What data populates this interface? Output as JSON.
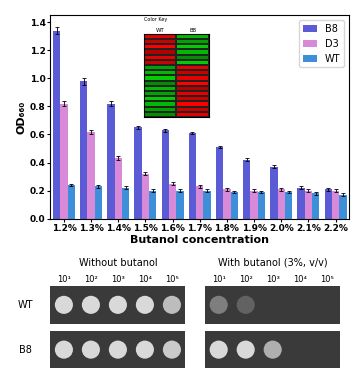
{
  "chart_data": [
    {
      "type": "bar",
      "x_label": "Butanol concentration",
      "y_label": "OD₆₆₀",
      "categories": [
        "1.2%",
        "1.3%",
        "1.4%",
        "1.5%",
        "1.6%",
        "1.7%",
        "1.8%",
        "1.9%",
        "2.0%",
        "2.1%",
        "2.2%"
      ],
      "series": [
        {
          "name": "B8",
          "color": "#5b5bd6",
          "values": [
            1.34,
            0.98,
            0.82,
            0.65,
            0.63,
            0.61,
            0.51,
            0.42,
            0.37,
            0.22,
            0.21
          ],
          "errors": [
            0.025,
            0.025,
            0.02,
            0.01,
            0.01,
            0.01,
            0.01,
            0.01,
            0.01,
            0.01,
            0.01
          ]
        },
        {
          "name": "D3",
          "color": "#d88ad8",
          "values": [
            0.82,
            0.62,
            0.43,
            0.32,
            0.25,
            0.23,
            0.21,
            0.2,
            0.21,
            0.2,
            0.2
          ],
          "errors": [
            0.015,
            0.015,
            0.015,
            0.01,
            0.01,
            0.01,
            0.01,
            0.01,
            0.01,
            0.01,
            0.01
          ]
        },
        {
          "name": "WT",
          "color": "#3d8fd9",
          "values": [
            0.24,
            0.23,
            0.22,
            0.2,
            0.2,
            0.2,
            0.19,
            0.19,
            0.19,
            0.18,
            0.17
          ],
          "errors": [
            0.01,
            0.01,
            0.01,
            0.01,
            0.01,
            0.01,
            0.01,
            0.01,
            0.01,
            0.01,
            0.01
          ]
        }
      ],
      "ylim": [
        0,
        1.45
      ],
      "yticks": [
        {
          "value": 0,
          "label": "0.0"
        },
        {
          "value": 0.2,
          "label": "0.2"
        },
        {
          "value": 0.4,
          "label": "0.4"
        },
        {
          "value": 0.6,
          "label": "0.6"
        },
        {
          "value": 0.8,
          "label": "0.8"
        },
        {
          "value": 1,
          "label": "1.0"
        },
        {
          "value": 1.2,
          "label": "1.2"
        },
        {
          "value": 1.4,
          "label": "1.4"
        }
      ],
      "legend": "upper right",
      "grid": false
    },
    {
      "type": "heatmap",
      "title": "Color Key",
      "categories": [
        "WT",
        "B8"
      ],
      "cells": [
        [
          0.9,
          -0.9
        ],
        [
          0.8,
          -0.8
        ],
        [
          1.0,
          -1.0
        ],
        [
          0.7,
          -0.9
        ],
        [
          0.9,
          -0.7
        ],
        [
          0.8,
          -1.0
        ],
        [
          -0.8,
          0.9
        ],
        [
          -0.9,
          0.8
        ],
        [
          -1.0,
          0.9
        ],
        [
          -0.7,
          1.0
        ],
        [
          -0.9,
          0.7
        ],
        [
          -0.8,
          0.9
        ],
        [
          -1.0,
          0.8
        ],
        [
          -0.9,
          1.0
        ],
        [
          -0.8,
          0.8
        ],
        [
          -0.7,
          0.9
        ]
      ],
      "color_range": [
        -1,
        1
      ],
      "tick_labels": "x"
    }
  ],
  "spot_assay": {
    "panels": [
      {
        "title": "Without butanol",
        "dilutions": [
          "10¹",
          "10²",
          "10³",
          "10⁴",
          "10⁵"
        ],
        "rows": [
          {
            "strain": "WT",
            "spots": [
              1,
              1,
              1,
              1,
              0.8
            ]
          },
          {
            "strain": "B8",
            "spots": [
              1,
              1,
              1,
              1,
              0.9
            ]
          }
        ]
      },
      {
        "title": "With butanol (3%, v/v)",
        "dilutions": [
          "10¹",
          "10²",
          "10³",
          "10⁴",
          "10⁵"
        ],
        "rows": [
          {
            "strain": "WT",
            "spots": [
              0.35,
              0.15,
              0,
              0,
              0
            ]
          },
          {
            "strain": "B8",
            "spots": [
              1,
              1,
              0.7,
              0,
              0
            ]
          }
        ]
      }
    ]
  }
}
